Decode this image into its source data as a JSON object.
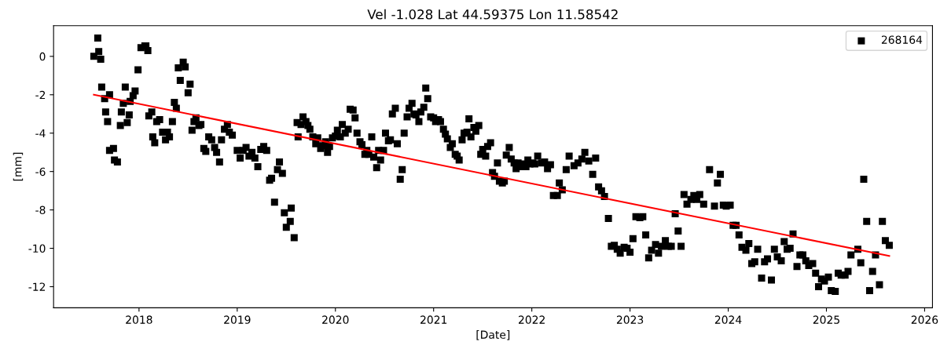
{
  "chart_data": {
    "type": "scatter",
    "title": "Vel -1.028 Lat 44.59375 Lon 11.58542",
    "xlabel": "[Date]",
    "ylabel": "[mm]",
    "xlim": [
      2017.13,
      2026.08
    ],
    "xticks": [
      2018,
      2019,
      2020,
      2021,
      2022,
      2023,
      2024,
      2025,
      2026
    ],
    "ylim": [
      -13.1,
      1.6
    ],
    "yticks": [
      0,
      -2,
      -4,
      -6,
      -8,
      -10,
      -12
    ],
    "legend": "top right",
    "grid": false,
    "series": [
      {
        "name": "268164",
        "color": "#000000",
        "marker": "square",
        "x": [
          2017.54,
          2017.58,
          2017.59,
          2017.61,
          2017.62,
          2017.65,
          2017.66,
          2017.68,
          2017.7,
          2017.7,
          2017.74,
          2017.75,
          2017.78,
          2017.81,
          2017.82,
          2017.84,
          2017.86,
          2017.88,
          2017.9,
          2017.91,
          2017.94,
          2017.96,
          2017.99,
          2018.02,
          2018.06,
          2018.07,
          2018.09,
          2018.1,
          2018.13,
          2018.14,
          2018.16,
          2018.18,
          2018.21,
          2018.24,
          2018.27,
          2018.29,
          2018.31,
          2018.34,
          2018.36,
          2018.38,
          2018.4,
          2018.42,
          2018.45,
          2018.47,
          2018.5,
          2018.52,
          2018.54,
          2018.56,
          2018.58,
          2018.61,
          2018.63,
          2018.66,
          2018.68,
          2018.71,
          2018.74,
          2018.77,
          2018.79,
          2018.82,
          2018.84,
          2018.87,
          2018.9,
          2018.92,
          2018.95,
          2019.0,
          2019.03,
          2019.06,
          2019.09,
          2019.12,
          2019.15,
          2019.18,
          2019.21,
          2019.24,
          2019.27,
          2019.3,
          2019.33,
          2019.35,
          2019.38,
          2019.41,
          2019.43,
          2019.46,
          2019.48,
          2019.5,
          2019.54,
          2019.55,
          2019.58,
          2019.61,
          2019.62,
          2019.65,
          2019.67,
          2019.7,
          2019.72,
          2019.74,
          2019.77,
          2019.8,
          2019.82,
          2019.85,
          2019.87,
          2019.9,
          2019.92,
          2019.94,
          2019.97,
          2020.0,
          2020.02,
          2020.05,
          2020.07,
          2020.1,
          2020.13,
          2020.15,
          2020.18,
          2020.2,
          2020.22,
          2020.25,
          2020.27,
          2020.3,
          2020.32,
          2020.34,
          2020.37,
          2020.39,
          2020.42,
          2020.44,
          2020.46,
          2020.49,
          2020.51,
          2020.54,
          2020.56,
          2020.58,
          2020.61,
          2020.63,
          2020.66,
          2020.68,
          2020.7,
          2020.73,
          2020.75,
          2020.78,
          2020.8,
          2020.82,
          2020.85,
          2020.87,
          2020.9,
          2020.92,
          2020.94,
          2020.97,
          2021.0,
          2021.02,
          2021.05,
          2021.07,
          2021.1,
          2021.12,
          2021.14,
          2021.17,
          2021.19,
          2021.22,
          2021.24,
          2021.26,
          2021.29,
          2021.31,
          2021.34,
          2021.36,
          2021.38,
          2021.41,
          2021.43,
          2021.46,
          2021.48,
          2021.5,
          2021.53,
          2021.55,
          2021.58,
          2021.6,
          2021.62,
          2021.65,
          2021.67,
          2021.7,
          2021.72,
          2021.74,
          2021.77,
          2021.79,
          2021.82,
          2021.84,
          2021.86,
          2021.89,
          2021.91,
          2021.94,
          2021.96,
          2021.98,
          2022.01,
          2022.03,
          2022.06,
          2022.1,
          2022.13,
          2022.16,
          2022.19,
          2022.22,
          2022.26,
          2022.28,
          2022.31,
          2022.35,
          2022.38,
          2022.43,
          2022.47,
          2022.51,
          2022.54,
          2022.58,
          2022.62,
          2022.65,
          2022.68,
          2022.71,
          2022.74,
          2022.78,
          2022.81,
          2022.84,
          2022.87,
          2022.9,
          2022.94,
          2022.97,
          2023.0,
          2023.03,
          2023.06,
          2023.1,
          2023.13,
          2023.16,
          2023.19,
          2023.22,
          2023.26,
          2023.29,
          2023.32,
          2023.36,
          2023.39,
          2023.42,
          2023.46,
          2023.49,
          2023.52,
          2023.55,
          2023.58,
          2023.62,
          2023.65,
          2023.68,
          2023.71,
          2023.75,
          2023.81,
          2023.86,
          2023.89,
          2023.92,
          2023.95,
          2023.98,
          2024.02,
          2024.05,
          2024.08,
          2024.11,
          2024.14,
          2024.18,
          2024.21,
          2024.24,
          2024.27,
          2024.3,
          2024.34,
          2024.37,
          2024.4,
          2024.44,
          2024.47,
          2024.5,
          2024.54,
          2024.57,
          2024.6,
          2024.63,
          2024.66,
          2024.7,
          2024.73,
          2024.76,
          2024.79,
          2024.82,
          2024.86,
          2024.89,
          2024.92,
          2024.95,
          2024.98,
          2025.02,
          2025.05,
          2025.09,
          2025.12,
          2025.15,
          2025.19,
          2025.22,
          2025.25,
          2025.32,
          2025.35,
          2025.38,
          2025.41,
          2025.44,
          2025.47,
          2025.5,
          2025.54,
          2025.57,
          2025.6,
          2025.64
        ],
        "values": [
          0.0,
          0.95,
          0.25,
          -0.15,
          -1.6,
          -2.2,
          -2.9,
          -3.4,
          -2.0,
          -4.9,
          -4.8,
          -5.4,
          -5.5,
          -3.6,
          -2.9,
          -2.45,
          -1.6,
          -3.45,
          -3.05,
          -2.35,
          -2.05,
          -1.8,
          -0.7,
          0.45,
          0.55,
          0.55,
          0.3,
          -3.1,
          -2.9,
          -4.2,
          -4.5,
          -3.4,
          -3.3,
          -3.95,
          -4.35,
          -3.95,
          -4.2,
          -3.4,
          -2.4,
          -2.7,
          -0.6,
          -1.25,
          -0.3,
          -0.55,
          -1.9,
          -1.45,
          -3.85,
          -3.4,
          -3.2,
          -3.6,
          -3.55,
          -4.8,
          -4.95,
          -4.2,
          -4.35,
          -4.75,
          -5.0,
          -5.5,
          -4.35,
          -3.8,
          -3.55,
          -3.95,
          -4.1,
          -4.9,
          -5.3,
          -4.9,
          -4.75,
          -5.2,
          -5.0,
          -5.3,
          -5.75,
          -4.85,
          -4.7,
          -4.9,
          -6.45,
          -6.35,
          -7.6,
          -5.9,
          -5.5,
          -6.1,
          -8.15,
          -8.9,
          -8.6,
          -7.9,
          -9.45,
          -3.45,
          -4.2,
          -3.55,
          -3.15,
          -3.4,
          -3.6,
          -3.8,
          -4.2,
          -4.55,
          -4.25,
          -4.8,
          -4.65,
          -4.45,
          -5.0,
          -4.7,
          -4.25,
          -4.15,
          -3.85,
          -4.2,
          -3.55,
          -4.0,
          -3.8,
          -2.75,
          -2.8,
          -3.2,
          -4.0,
          -4.45,
          -4.6,
          -5.1,
          -4.9,
          -5.1,
          -4.2,
          -5.25,
          -5.8,
          -4.9,
          -5.4,
          -4.9,
          -4.0,
          -4.4,
          -4.35,
          -3.0,
          -2.7,
          -4.55,
          -6.4,
          -5.9,
          -4.0,
          -3.15,
          -2.7,
          -2.45,
          -3.0,
          -3.05,
          -3.4,
          -2.9,
          -2.65,
          -1.65,
          -2.2,
          -3.15,
          -3.2,
          -3.4,
          -3.3,
          -3.4,
          -3.8,
          -4.05,
          -4.3,
          -4.75,
          -4.55,
          -5.1,
          -5.2,
          -5.4,
          -4.35,
          -4.0,
          -3.95,
          -3.25,
          -4.2,
          -3.7,
          -3.9,
          -3.6,
          -5.1,
          -4.85,
          -5.2,
          -4.7,
          -4.5,
          -6.05,
          -6.25,
          -5.55,
          -6.5,
          -6.6,
          -6.5,
          -5.15,
          -4.75,
          -5.35,
          -5.55,
          -5.85,
          -5.55,
          -5.75,
          -5.6,
          -5.75,
          -5.4,
          -5.6,
          -5.55,
          -5.6,
          -5.2,
          -5.55,
          -5.5,
          -5.85,
          -5.65,
          -7.25,
          -7.25,
          -6.6,
          -6.95,
          -5.9,
          -5.2,
          -5.7,
          -5.55,
          -5.35,
          -5.0,
          -5.45,
          -6.15,
          -5.3,
          -6.8,
          -7.0,
          -7.3,
          -8.45,
          -9.9,
          -9.85,
          -10.05,
          -10.25,
          -9.95,
          -10.0,
          -10.2,
          -9.5,
          -8.35,
          -8.4,
          -8.35,
          -9.3,
          -10.5,
          -10.1,
          -9.8,
          -10.25,
          -9.9,
          -9.6,
          -9.9,
          -9.9,
          -8.2,
          -9.1,
          -9.9,
          -7.2,
          -7.7,
          -7.45,
          -7.25,
          -7.45,
          -7.2,
          -7.7,
          -5.9,
          -7.8,
          -6.6,
          -6.15,
          -7.75,
          -7.8,
          -7.75,
          -8.8,
          -8.8,
          -9.3,
          -9.95,
          -10.1,
          -9.75,
          -10.8,
          -10.7,
          -10.05,
          -11.55,
          -10.7,
          -10.55,
          -11.65,
          -10.05,
          -10.45,
          -10.65,
          -9.65,
          -10.05,
          -10.0,
          -9.25,
          -10.95,
          -10.35,
          -10.35,
          -10.65,
          -10.9,
          -10.8,
          -11.3,
          -12.0,
          -11.6,
          -11.7,
          -11.5,
          -12.2,
          -12.25,
          -11.3,
          -11.4,
          -11.4,
          -11.2,
          -10.35,
          -10.05,
          -10.75,
          -6.4,
          -8.6,
          -12.2,
          -11.2,
          -10.35,
          -11.9,
          -8.6,
          -9.6,
          -9.85
        ]
      },
      {
        "type": "line",
        "color": "#ff0000",
        "line_style": "solid",
        "x": [
          2017.54,
          2025.64
        ],
        "values": [
          -2.0,
          -10.4
        ]
      }
    ]
  }
}
